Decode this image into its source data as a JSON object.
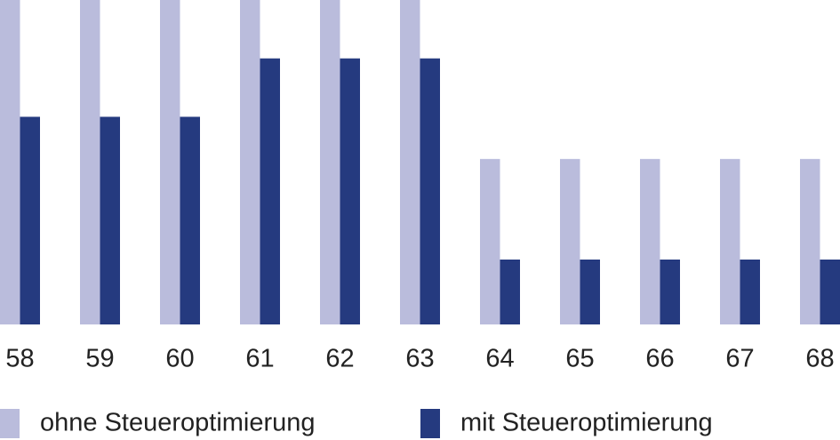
{
  "chart_data": {
    "type": "bar",
    "categories": [
      "58",
      "59",
      "60",
      "61",
      "62",
      "63",
      "64",
      "65",
      "66",
      "67",
      "68"
    ],
    "series": [
      {
        "name": "ohne Steueroptimierung",
        "color": "#babcdc",
        "values": [
          100,
          100,
          100,
          100,
          100,
          100,
          51,
          51,
          51,
          51,
          51
        ]
      },
      {
        "name": "mit Steueroptimierung",
        "color": "#253a7f",
        "values": [
          64,
          64,
          64,
          82,
          82,
          82,
          20,
          20,
          20,
          20,
          20
        ]
      }
    ],
    "ylim": [
      0,
      100
    ]
  }
}
